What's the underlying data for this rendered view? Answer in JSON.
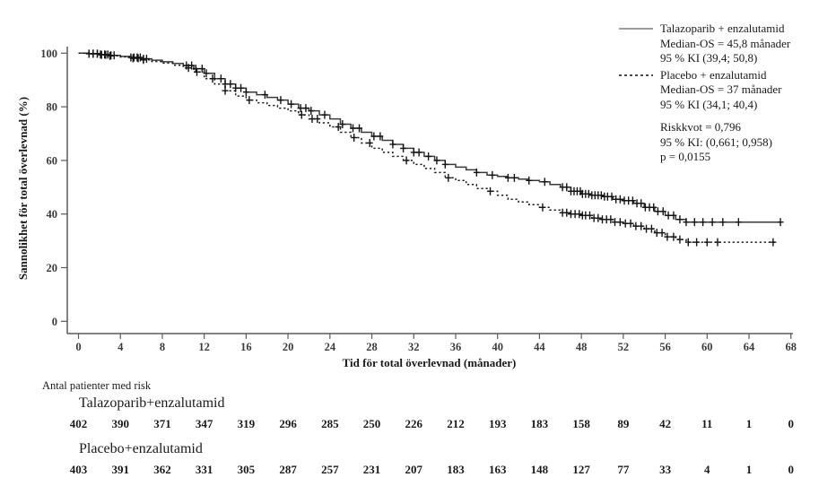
{
  "legend": {
    "talazoparib": {
      "label": "Talazoparib + enzalutamid",
      "median": "Median-OS = 45,8 månader",
      "ci": "95 % KI (39,4; 50,8)"
    },
    "placebo": {
      "label": "Placebo + enzalutamid",
      "median": "Median-OS = 37 månader",
      "ci": "95 % KI (34,1; 40,4)"
    },
    "stats": {
      "hazard_ratio": "Riskkvot = 0,796",
      "ci": "95 % KI: (0,661; 0,958)",
      "p_value": "p = 0,0155"
    }
  },
  "chart_data": {
    "type": "line",
    "subtype": "kaplan-meier",
    "xlabel": "Tid för total överlevnad (månader)",
    "ylabel": "Sannolikhet för total överlevnad (%)",
    "xlim": [
      0,
      68
    ],
    "ylim": [
      0,
      100
    ],
    "x_ticks": [
      0,
      4,
      8,
      12,
      16,
      20,
      24,
      28,
      32,
      36,
      40,
      44,
      48,
      52,
      56,
      60,
      64,
      68
    ],
    "y_ticks": [
      0,
      20,
      40,
      60,
      80,
      100
    ],
    "grid": false,
    "legend_position": "top-right",
    "series": [
      {
        "name": "Talazoparib + enzalutamid",
        "style": "solid",
        "color": "#3a3a3a",
        "points": [
          [
            0,
            100
          ],
          [
            1,
            99.8
          ],
          [
            2,
            99.5
          ],
          [
            3,
            99.2
          ],
          [
            4,
            98.8
          ],
          [
            5,
            98.4
          ],
          [
            6,
            97.9
          ],
          [
            7,
            97.4
          ],
          [
            8,
            96.8
          ],
          [
            9,
            96.2
          ],
          [
            10,
            95.4
          ],
          [
            11,
            94.2
          ],
          [
            12,
            92.5
          ],
          [
            13,
            90.5
          ],
          [
            14,
            88.5
          ],
          [
            15,
            87
          ],
          [
            16,
            85.5
          ],
          [
            17,
            84.5
          ],
          [
            18,
            83.5
          ],
          [
            19,
            82.5
          ],
          [
            20,
            81
          ],
          [
            21,
            79.5
          ],
          [
            22,
            78.5
          ],
          [
            23,
            77
          ],
          [
            24,
            75.5
          ],
          [
            25,
            73.5
          ],
          [
            26,
            72
          ],
          [
            27,
            70.5
          ],
          [
            28,
            69
          ],
          [
            29,
            67.5
          ],
          [
            30,
            66
          ],
          [
            31,
            64.5
          ],
          [
            32,
            63
          ],
          [
            33,
            61.5
          ],
          [
            34,
            60
          ],
          [
            35,
            58.5
          ],
          [
            36,
            57.5
          ],
          [
            37,
            56.5
          ],
          [
            38,
            55.5
          ],
          [
            39,
            54.5
          ],
          [
            40,
            54
          ],
          [
            41,
            53.5
          ],
          [
            42,
            53
          ],
          [
            43,
            52.5
          ],
          [
            44,
            52
          ],
          [
            45,
            51
          ],
          [
            46,
            50
          ],
          [
            47,
            48.5
          ],
          [
            48,
            47.5
          ],
          [
            49,
            47
          ],
          [
            50,
            46.5
          ],
          [
            51,
            45.5
          ],
          [
            52,
            45
          ],
          [
            53,
            44
          ],
          [
            54,
            42.5
          ],
          [
            55,
            41
          ],
          [
            56,
            39.5
          ],
          [
            57,
            38
          ],
          [
            58,
            37
          ],
          [
            67,
            37
          ]
        ],
        "censor_months": [
          1,
          1.4,
          1.8,
          2.1,
          2.5,
          2.8,
          3.1,
          3.4,
          5,
          5.3,
          5.6,
          5.9,
          6.2,
          6.5,
          10.3,
          10.8,
          11.2,
          11.8,
          12.2,
          13.6,
          14,
          14.5,
          15,
          15.5,
          16,
          17.8,
          19.3,
          20.3,
          21.2,
          21.7,
          22.2,
          23.5,
          25.2,
          26.2,
          26.8,
          28.2,
          28.8,
          30,
          31,
          32,
          32.5,
          33.4,
          34.2,
          35,
          38,
          39.5,
          41,
          41.6,
          43,
          44.5,
          46.2,
          46.6,
          47,
          47.3,
          47.6,
          47.9,
          48.1,
          48.4,
          48.7,
          49,
          49.3,
          49.6,
          49.9,
          50.2,
          50.5,
          50.9,
          51.3,
          51.7,
          52.1,
          52.5,
          52.9,
          53.3,
          53.7,
          54.1,
          54.5,
          54.9,
          55.3,
          55.8,
          56.3,
          56.8,
          57.4,
          58,
          58.8,
          59.6,
          60.5,
          61.5,
          63,
          67
        ]
      },
      {
        "name": "Placebo + enzalutamid",
        "style": "dashed",
        "color": "#1a1a1a",
        "points": [
          [
            0,
            100
          ],
          [
            1,
            99.8
          ],
          [
            2,
            99.4
          ],
          [
            3,
            99
          ],
          [
            4,
            98.6
          ],
          [
            5,
            98.1
          ],
          [
            6,
            97.5
          ],
          [
            7,
            96.9
          ],
          [
            8,
            96.3
          ],
          [
            9,
            95.5
          ],
          [
            10,
            94.5
          ],
          [
            11,
            93
          ],
          [
            12,
            90.5
          ],
          [
            13,
            88.5
          ],
          [
            14,
            86
          ],
          [
            15,
            84
          ],
          [
            16,
            82.5
          ],
          [
            17,
            81.5
          ],
          [
            18,
            80.5
          ],
          [
            19,
            79.5
          ],
          [
            20,
            78.5
          ],
          [
            21,
            77
          ],
          [
            22,
            75.5
          ],
          [
            23,
            74
          ],
          [
            24,
            72.5
          ],
          [
            25,
            70.5
          ],
          [
            26,
            68.5
          ],
          [
            27,
            66.5
          ],
          [
            28,
            64.5
          ],
          [
            29,
            63
          ],
          [
            30,
            61.5
          ],
          [
            31,
            60
          ],
          [
            32,
            58.5
          ],
          [
            33,
            57
          ],
          [
            34,
            55.5
          ],
          [
            35,
            53.5
          ],
          [
            36,
            52.5
          ],
          [
            37,
            51
          ],
          [
            38,
            49.5
          ],
          [
            39,
            48.5
          ],
          [
            40,
            47
          ],
          [
            41,
            45.5
          ],
          [
            42,
            44.5
          ],
          [
            43,
            43.5
          ],
          [
            44,
            42.5
          ],
          [
            45,
            41.5
          ],
          [
            46,
            40.5
          ],
          [
            47,
            40
          ],
          [
            48,
            39.5
          ],
          [
            49,
            38.5
          ],
          [
            50,
            38
          ],
          [
            51,
            37
          ],
          [
            52,
            36.5
          ],
          [
            53,
            35.5
          ],
          [
            54,
            34.5
          ],
          [
            55,
            33
          ],
          [
            56,
            31.5
          ],
          [
            57,
            30.5
          ],
          [
            58,
            29.5
          ],
          [
            66.5,
            29.5
          ]
        ],
        "censor_months": [
          1,
          1.4,
          1.8,
          2.2,
          2.6,
          3,
          5.2,
          5.7,
          6.2,
          10.5,
          11.3,
          12.8,
          14,
          16.3,
          21.3,
          22.3,
          22.8,
          24.8,
          26.3,
          27.8,
          31.3,
          35.3,
          39.3,
          44.3,
          46.2,
          46.6,
          47,
          47.4,
          47.8,
          48.1,
          48.4,
          48.8,
          49.2,
          49.6,
          50,
          50.4,
          50.8,
          51.2,
          51.7,
          52.2,
          52.7,
          53.2,
          53.7,
          54.2,
          54.7,
          55.2,
          55.7,
          56.2,
          56.8,
          57.4,
          58.2,
          59,
          60,
          61,
          66.3
        ]
      }
    ]
  },
  "risk_table": {
    "title": "Antal patienter med risk",
    "groups": [
      {
        "label": "Talazoparib+enzalutamid",
        "counts": [
          402,
          390,
          371,
          347,
          319,
          296,
          285,
          250,
          226,
          212,
          193,
          183,
          158,
          89,
          42,
          11,
          1,
          0
        ]
      },
      {
        "label": "Placebo+enzalutamid",
        "counts": [
          403,
          391,
          362,
          331,
          305,
          287,
          257,
          231,
          207,
          183,
          163,
          148,
          127,
          77,
          33,
          4,
          1,
          0
        ]
      }
    ]
  }
}
